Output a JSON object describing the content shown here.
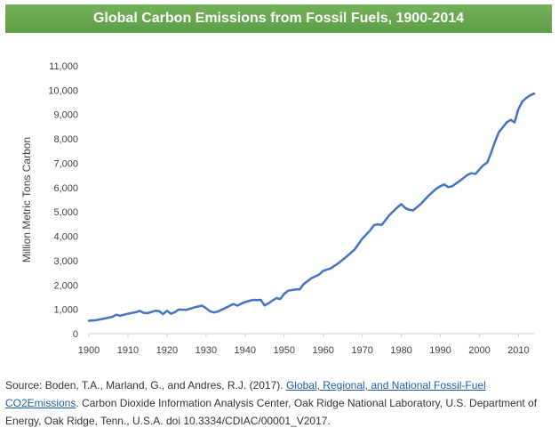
{
  "banner": {
    "title": "Global Carbon Emissions from Fossil Fuels, 1900-2014",
    "background": "#6aa84f",
    "text_color": "#ffffff"
  },
  "chart_data": {
    "type": "line",
    "title": "Global Carbon Emissions from Fossil Fuels, 1900-2014",
    "xlabel": "",
    "ylabel": "Million Metric Tons Carbon",
    "xlim": [
      1900,
      2014
    ],
    "ylim": [
      0,
      11000
    ],
    "grid": false,
    "legend": "none",
    "line_color": "#4472c4",
    "x_ticks": [
      1900,
      1910,
      1920,
      1930,
      1940,
      1950,
      1960,
      1970,
      1980,
      1990,
      2000,
      2010
    ],
    "y_ticks": [
      0,
      1000,
      2000,
      3000,
      4000,
      5000,
      6000,
      7000,
      8000,
      9000,
      10000,
      11000
    ],
    "y_tick_labels": [
      "0",
      "1,000",
      "2,000",
      "3,000",
      "4,000",
      "5,000",
      "6,000",
      "7,000",
      "8,000",
      "9,000",
      "10,000",
      "11,000"
    ],
    "series": [
      {
        "name": "Global carbon emissions",
        "x": [
          1900,
          1902,
          1904,
          1906,
          1907,
          1908,
          1910,
          1912,
          1913,
          1914,
          1915,
          1917,
          1918,
          1919,
          1920,
          1921,
          1922,
          1923,
          1925,
          1927,
          1929,
          1930,
          1931,
          1932,
          1933,
          1935,
          1937,
          1938,
          1940,
          1942,
          1943,
          1944,
          1945,
          1946,
          1948,
          1949,
          1950,
          1951,
          1953,
          1954,
          1955,
          1957,
          1959,
          1960,
          1962,
          1964,
          1966,
          1968,
          1970,
          1972,
          1973,
          1974,
          1975,
          1977,
          1979,
          1980,
          1981,
          1982,
          1983,
          1985,
          1987,
          1989,
          1990,
          1991,
          1992,
          1993,
          1995,
          1997,
          1998,
          1999,
          2000,
          2001,
          2002,
          2003,
          2004,
          2005,
          2006,
          2007,
          2008,
          2009,
          2010,
          2011,
          2012,
          2013,
          2014
        ],
        "values": [
          530,
          560,
          620,
          690,
          780,
          740,
          820,
          880,
          940,
          860,
          840,
          940,
          930,
          800,
          940,
          820,
          880,
          990,
          980,
          1080,
          1150,
          1050,
          920,
          870,
          910,
          1060,
          1220,
          1150,
          1300,
          1390,
          1380,
          1390,
          1160,
          1250,
          1460,
          1420,
          1630,
          1760,
          1820,
          1820,
          2040,
          2280,
          2430,
          2580,
          2690,
          2910,
          3170,
          3450,
          3900,
          4240,
          4460,
          4490,
          4470,
          4880,
          5190,
          5320,
          5160,
          5090,
          5060,
          5330,
          5670,
          5960,
          6060,
          6130,
          6020,
          6050,
          6280,
          6530,
          6590,
          6560,
          6750,
          6920,
          7030,
          7440,
          7890,
          8280,
          8480,
          8680,
          8780,
          8680,
          9230,
          9540,
          9680,
          9790,
          9860
        ]
      }
    ]
  },
  "source": {
    "prefix": "Source: Boden, T.A., Marland, G., and Andres, R.J. (2017). ",
    "link_text": "Global, Regional, and National Fossil-Fuel CO2Emissions",
    "suffix": ". Carbon Dioxide Information Analysis Center, Oak Ridge National Laboratory, U.S. Department of Energy, Oak Ridge, Tenn., U.S.A. doi 10.3334/CDIAC/00001_V2017."
  }
}
